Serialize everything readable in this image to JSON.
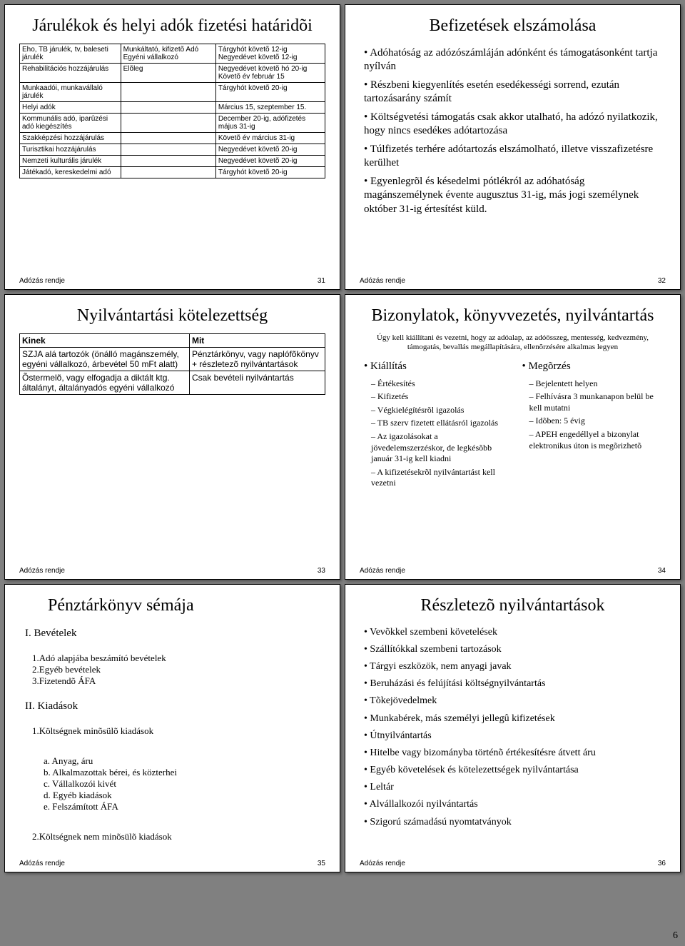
{
  "footer_label": "Adózás rendje",
  "page_number": "6",
  "slides": {
    "s31": {
      "title": "Járulékok és helyi adók fizetési határidõi",
      "num": "31",
      "table": {
        "rows": [
          [
            "Eho, TB járulék, tv, baleseti járulék",
            "Munkáltató, kifizetõ Adó\nEgyéni vállalkozó",
            "Tárgyhót követõ 12-ig\nNegyedévet követõ 12-ig"
          ],
          [
            "Rehabilitációs hozzájárulás",
            "Elõleg",
            "Negyedévet követõ hó 20-ig\nKövetõ év február 15"
          ],
          [
            "Munkaadói, munkavállaló járulék",
            "",
            "Tárgyhót követõ 20-ig"
          ],
          [
            "Helyi adók",
            "",
            "Március 15, szeptember 15."
          ],
          [
            "Kommunális adó, iparûzési adó kiegészítés",
            "",
            "December 20-ig, adófizetés május 31-ig"
          ],
          [
            "Szakképzési hozzájárulás",
            "",
            "Követõ év március 31-ig"
          ],
          [
            "Turisztikai hozzájárulás",
            "",
            "Negyedévet követõ 20-ig"
          ],
          [
            "Nemzeti kulturális járulék",
            "",
            "Negyedévet követõ 20-ig"
          ],
          [
            "Játékadó, kereskedelmi adó",
            "",
            "Tárgyhót követõ 20-ig"
          ]
        ]
      }
    },
    "s32": {
      "title": "Befizetések elszámolása",
      "num": "32",
      "bullets": [
        "Adóhatóság az adózószámláján adónként és támogatásonként tartja nyílván",
        "Részbeni kiegyenlítés esetén esedékességi sorrend, ezután tartozásarány számít",
        "Költségvetési támogatás csak akkor utalható, ha adózó nyilatkozik, hogy nincs esedékes adótartozása",
        "Túlfizetés terhére adótartozás elszámolható, illetve visszafizetésre kerülhet",
        "Egyenlegrõl és késedelmi pótlékról az adóhatóság magánszemélynek évente augusztus 31-ig, más jogi személynek október 31-ig értesítést küld."
      ]
    },
    "s33": {
      "title": "Nyilvántartási kötelezettség",
      "num": "33",
      "table": {
        "header": [
          "Kinek",
          "Mit"
        ],
        "rows": [
          [
            "SZJA alá tartozók (önálló magánszemély, egyéni vállalkozó, árbevétel 50 mFt alatt)",
            "Pénztárkönyv, vagy naplófõkönyv + részletezõ nyilvántartások"
          ],
          [
            "Õstermelõ, vagy elfogadja a diktált ktg. általányt, általányadós egyéni vállalkozó",
            "Csak bevételi nyilvántartás"
          ]
        ]
      }
    },
    "s34": {
      "title": "Bizonylatok, könyvvezetés, nyilvántartás",
      "num": "34",
      "note": "Úgy kell kiállítani és vezetni, hogy az adóalap, az adóösszeg, mentesség, kedvezmény, támogatás, bevallás megállapítására, ellenõrzésére alkalmas legyen",
      "left": {
        "head": "Kiállítás",
        "items": [
          "Értékesítés",
          "Kifizetés",
          "Végkielégítésrõl igazolás",
          "TB szerv fizetett ellátásról igazolás",
          "Az igazolásokat a jövedelemszerzéskor, de legkésõbb január 31-ig kell kiadni",
          "A kifizetésekrõl nyilvántartást kell vezetni"
        ]
      },
      "right": {
        "head": "Megõrzés",
        "items": [
          "Bejelentett helyen",
          "Felhívásra 3 munkanapon belül be kell mutatni",
          "Idõben: 5 évig",
          "APEH engedéllyel a bizonylat elektronikus úton is megõrizhetõ"
        ]
      }
    },
    "s35": {
      "title": "Pénztárkönyv sémája",
      "num": "35",
      "items": {
        "I": "I.    Bevételek",
        "I_sub": [
          "1.Adó alapjába beszámító bevételek",
          "2.Egyéb bevételek",
          "3.Fizetendõ ÁFA"
        ],
        "II": "II.   Kiadások",
        "II_1": "1.Költségnek minõsülõ kiadások",
        "II_1_sub": [
          "a. Anyag, áru",
          "b. Alkalmazottak bérei, és közterhei",
          "c. Vállalkozói kivét",
          "d. Egyéb kiadások",
          "e. Felszámított ÁFA"
        ],
        "II_2": "2.Költségnek nem minõsülõ kiadások"
      }
    },
    "s36": {
      "title": "Részletezõ nyilvántartások",
      "num": "36",
      "bullets": [
        "Vevõkkel szembeni követelések",
        "Szállítókkal szembeni tartozások",
        "Tárgyi eszközök, nem anyagi javak",
        "Beruházási és felújítási költségnyilvántartás",
        "Tõkejövedelmek",
        "Munkabérek, más személyi jellegû kifizetések",
        "Útnyilvántartás",
        "Hitelbe vagy bizományba történõ értékesítésre átvett áru",
        "Egyéb követelések és kötelezettségek nyilvántartása",
        "Leltár",
        "Alvállalkozói nyilvántartás",
        "Szigorú számadású nyomtatványok"
      ]
    }
  }
}
